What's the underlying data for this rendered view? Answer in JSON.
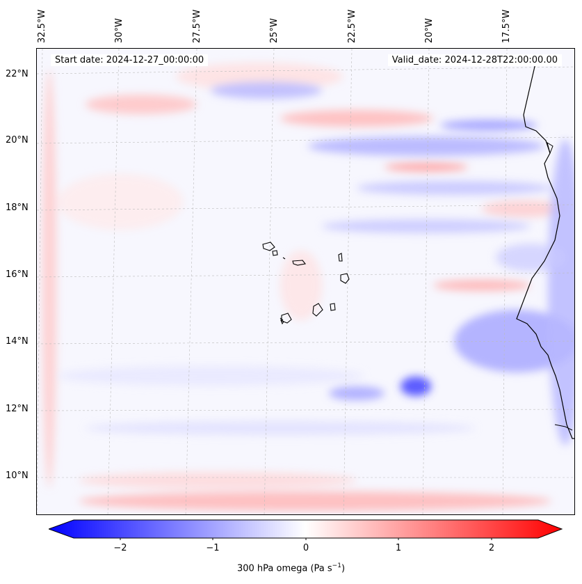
{
  "map": {
    "start_date": "Start date: 2024-12-27_00:00:00",
    "valid_date": "Valid_date: 2024-12-28T22:00:00.00",
    "lon_labels": [
      "32.5°W",
      "30°W",
      "27.5°W",
      "25°W",
      "22.5°W",
      "20°W",
      "17.5°W"
    ],
    "lat_labels": [
      "22°N",
      "20°N",
      "18°N",
      "16°N",
      "14°N",
      "12°N",
      "10°N"
    ]
  },
  "colorbar": {
    "ticks": [
      "−2",
      "−1",
      "0",
      "1",
      "2"
    ],
    "label_prefix": "300 hPa omega (Pa s",
    "label_exp": "−1",
    "label_suffix": ")",
    "colors": {
      "min": "#0000ff",
      "mid": "#ffffff",
      "max": "#ff0000"
    }
  }
}
